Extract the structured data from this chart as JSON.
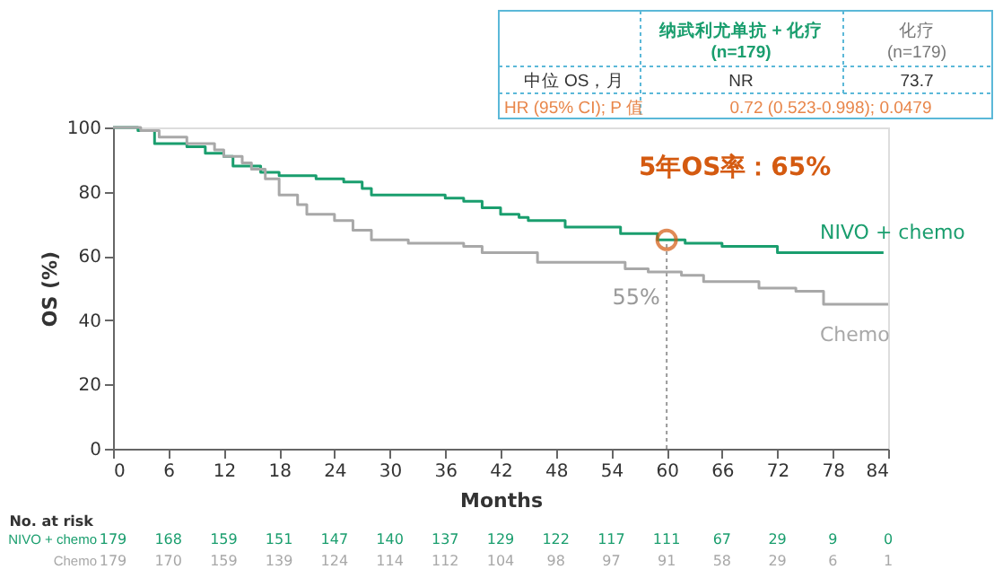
{
  "chart_data": {
    "type": "step",
    "xlabel": "Months",
    "ylabel": "OS (%)",
    "xlim": [
      0,
      84
    ],
    "xticks": [
      0,
      6,
      12,
      18,
      24,
      30,
      36,
      42,
      48,
      54,
      60,
      66,
      72,
      78,
      84
    ],
    "ylim": [
      0,
      100
    ],
    "yticks": [
      0,
      20,
      40,
      60,
      80,
      100
    ],
    "grid": false,
    "legend": false,
    "series": [
      {
        "name": "NIVO + chemo",
        "color": "#1a9e6e",
        "x": [
          0,
          2.7,
          4.5,
          8,
          10,
          12,
          13,
          16,
          18,
          22,
          25,
          27,
          28,
          36,
          38,
          40,
          42,
          44,
          45,
          49,
          55,
          59,
          62,
          66,
          72,
          83.5
        ],
        "values": [
          100,
          99,
          95,
          94,
          92,
          91,
          88,
          86,
          85,
          84,
          83,
          81,
          79,
          78,
          77,
          75,
          73,
          72,
          71,
          69,
          67,
          65,
          64,
          63,
          61,
          61
        ]
      },
      {
        "name": "Chemo",
        "color": "#a8a8a8",
        "x": [
          0,
          3,
          5,
          8,
          11,
          12,
          14,
          15,
          16.5,
          18,
          20,
          21,
          24,
          26,
          28,
          32,
          38,
          40,
          46,
          55.5,
          58,
          61.6,
          64,
          70,
          74,
          77,
          84
        ],
        "values": [
          100,
          99,
          97,
          95,
          93,
          91,
          89,
          87,
          84,
          79,
          76,
          73,
          71,
          68,
          65,
          64,
          63,
          61,
          58,
          56,
          55,
          54,
          52,
          50,
          49,
          45,
          45
        ]
      }
    ],
    "ref_lines": [
      {
        "axis": "x",
        "value": 60,
        "color": "#999999",
        "line_style": "dotted"
      }
    ],
    "annotations": [
      "纳武利尤单抗 + 化疗",
      "(n=179)",
      "化疗",
      "(n=179)",
      "中位 OS，月",
      "NR",
      "73.7",
      "HR (95% CI); P 值",
      "0.72 (0.523-0.998); 0.0479",
      {
        "text": "5年OS率：65%",
        "x": 60,
        "y": 65
      },
      {
        "text": "55%",
        "x": 60,
        "y": 55
      },
      "No. at risk",
      "179",
      "168",
      "159",
      "151",
      "147",
      "140",
      "137",
      "129",
      "122",
      "117",
      "111",
      "67",
      "29",
      "9",
      "0",
      "179",
      "170",
      "159",
      "139",
      "124",
      "114",
      "112",
      "104",
      "98",
      "97",
      "91",
      "58",
      "29",
      "6",
      "1"
    ]
  }
}
